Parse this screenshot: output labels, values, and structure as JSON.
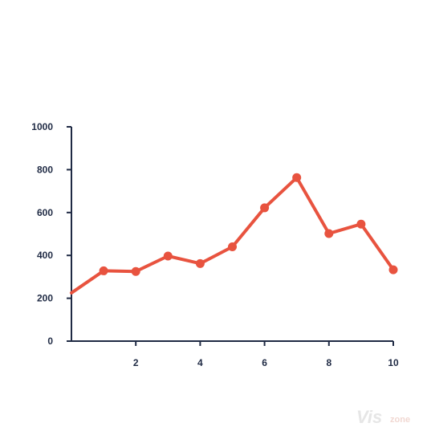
{
  "chart_data": {
    "type": "line",
    "x": [
      0,
      1,
      2,
      3,
      4,
      5,
      6,
      7,
      8,
      9,
      10
    ],
    "series": [
      {
        "values": [
          225,
          328,
          325,
          397,
          362,
          440,
          622,
          763,
          502,
          546,
          333
        ]
      }
    ],
    "xlim": [
      0,
      10
    ],
    "ylim": [
      0,
      1000
    ],
    "x_ticks": [
      2,
      4,
      6,
      8,
      10
    ],
    "y_ticks": [
      0,
      200,
      400,
      600,
      800,
      1000
    ],
    "x_tick_labels": [
      "2",
      "4",
      "6",
      "8",
      "10"
    ],
    "y_tick_labels": [
      "0",
      "200",
      "400",
      "600",
      "800",
      "1000"
    ],
    "grid": false,
    "markers": true,
    "colors": {
      "series": "#e8533f",
      "axis": "#1f2a44"
    }
  },
  "watermark": {
    "part1": "Vis",
    "part2": "zone"
  }
}
